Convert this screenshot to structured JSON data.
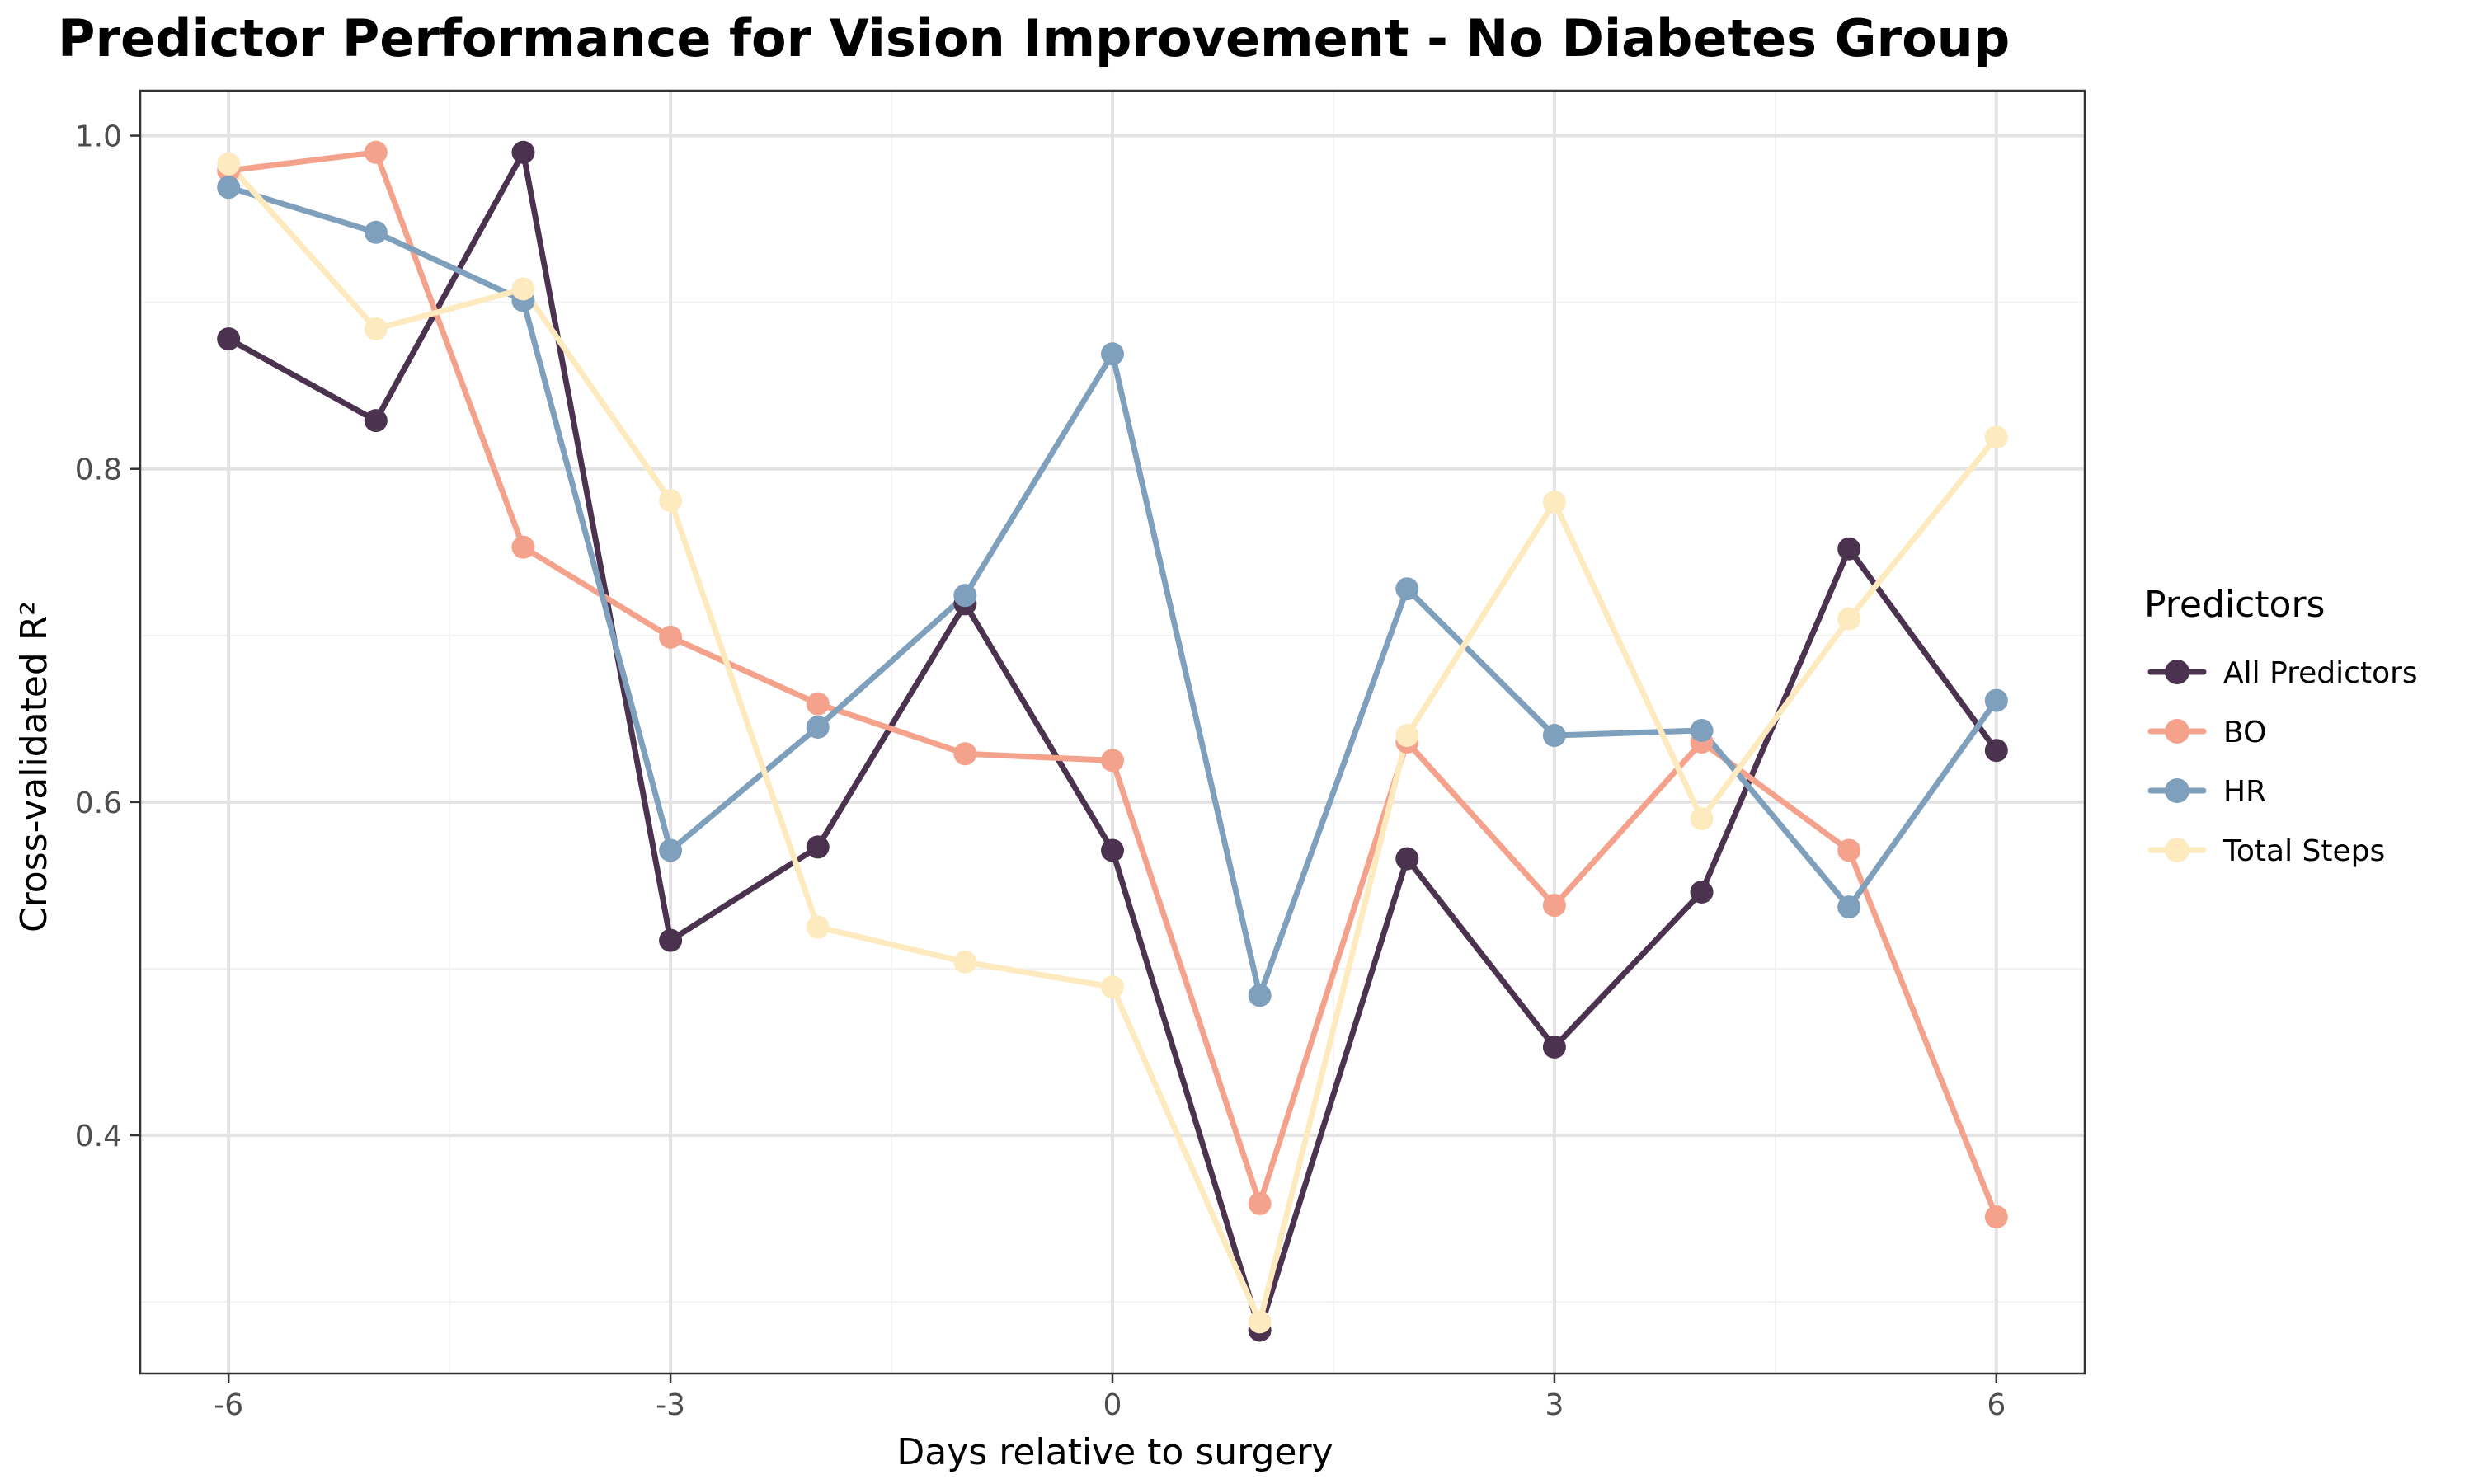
{
  "chart_data": {
    "type": "line",
    "title": "Predictor Performance for Vision Improvement - No Diabetes Group",
    "xlabel": "Days relative to surgery",
    "ylabel": "Cross-validated R²",
    "x": [
      -6,
      -5,
      -4,
      -3,
      -2,
      -1,
      0,
      1,
      2,
      3,
      4,
      5,
      6
    ],
    "xlim": [
      -6.6,
      6.6
    ],
    "ylim": [
      0.257,
      1.027
    ],
    "x_ticks": [
      -6,
      -3,
      0,
      3,
      6
    ],
    "x_tick_labels": [
      "-6",
      "-3",
      "0",
      "3",
      "6"
    ],
    "y_ticks": [
      0.4,
      0.6,
      0.8,
      1.0
    ],
    "y_tick_labels": [
      "0.4",
      "0.6",
      "0.8",
      "1.0"
    ],
    "grid": true,
    "legend_title": "Predictors",
    "legend_position": "right",
    "series": [
      {
        "name": "All Predictors",
        "color": "#4b3350",
        "values": [
          0.878,
          0.829,
          0.99,
          0.517,
          0.573,
          0.719,
          0.571,
          0.283,
          0.566,
          0.453,
          0.546,
          0.752,
          0.631
        ]
      },
      {
        "name": "BO",
        "color": "#f4a28c",
        "values": [
          0.979,
          0.99,
          0.753,
          0.699,
          0.659,
          0.629,
          0.625,
          0.359,
          0.636,
          0.538,
          0.636,
          0.571,
          0.351
        ]
      },
      {
        "name": "HR",
        "color": "#7fa0bc",
        "values": [
          0.969,
          0.942,
          0.901,
          0.571,
          0.645,
          0.724,
          0.869,
          0.484,
          0.728,
          0.64,
          0.643,
          0.537,
          0.661
        ]
      },
      {
        "name": "Total Steps",
        "color": "#fdebbf",
        "values": [
          0.983,
          0.884,
          0.908,
          0.781,
          0.525,
          0.504,
          0.489,
          0.288,
          0.64,
          0.78,
          0.59,
          0.71,
          0.819
        ]
      }
    ]
  }
}
